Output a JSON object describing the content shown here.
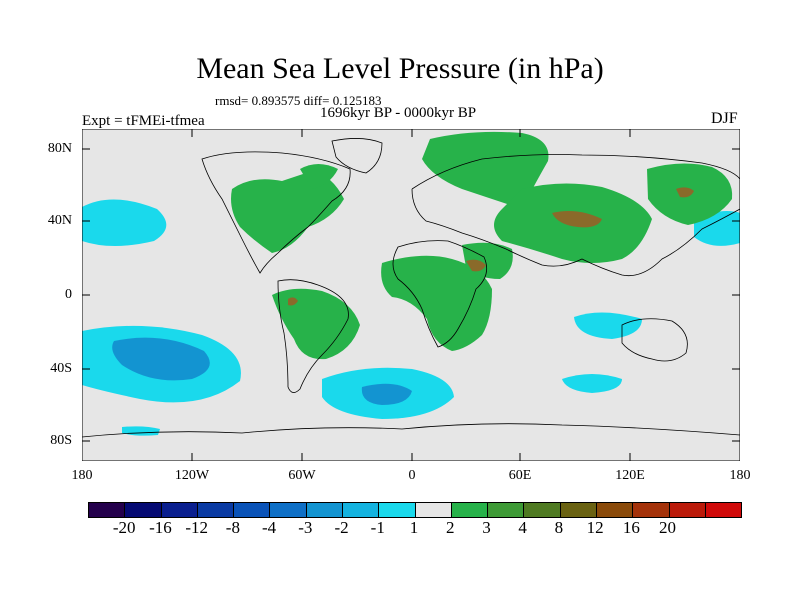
{
  "title": "Mean Sea Level Pressure (in hPa)",
  "stats": "rmsd= 0.893575 diff= 0.125183",
  "period": "1696kyr BP - 0000kyr BP",
  "experiment": "Expt = tFMEi-tfmea",
  "season": "DJF",
  "map": {
    "lat_ticks": [
      "80N",
      "40N",
      "0",
      "40S",
      "80S"
    ],
    "lon_ticks": [
      "180",
      "120W",
      "60W",
      "0",
      "60E",
      "120E",
      "180"
    ],
    "background_color": "#e6e6e6"
  },
  "colorbar": {
    "colors": [
      "#24004c",
      "#050a73",
      "#0a1f8f",
      "#0a3aa3",
      "#0a53b8",
      "#0f70c7",
      "#1394d1",
      "#14b3e0",
      "#1ad9ec",
      "#e6e6e6",
      "#27b24a",
      "#3e9a36",
      "#4f7a22",
      "#6a6212",
      "#8a4a0a",
      "#a4320a",
      "#bb1a0a",
      "#d00a0a"
    ],
    "labels": [
      "-20",
      "-16",
      "-12",
      "-8",
      "-4",
      "-3",
      "-2",
      "-1",
      "1",
      "2",
      "3",
      "4",
      "8",
      "12",
      "16",
      "20"
    ]
  },
  "chart_data": {
    "type": "map-contour",
    "variable": "Mean Sea Level Pressure difference",
    "units": "hPa",
    "levels": [
      -20,
      -16,
      -12,
      -8,
      -4,
      -3,
      -2,
      -1,
      1,
      2,
      3,
      4,
      8,
      12,
      16,
      20
    ],
    "regions": [
      {
        "name": "North Pacific (west of N. America)",
        "sign": "negative",
        "min_level": -1,
        "lat": [
          25,
          45
        ],
        "lon": [
          -180,
          -140
        ]
      },
      {
        "name": "South Pacific",
        "sign": "negative",
        "min_level": -2,
        "lat": [
          -60,
          -20
        ],
        "lon": [
          -180,
          -110
        ]
      },
      {
        "name": "South Atlantic",
        "sign": "negative",
        "min_level": -2,
        "lat": [
          -65,
          -40
        ],
        "lon": [
          -40,
          30
        ]
      },
      {
        "name": "Indian Ocean off Australia",
        "sign": "negative",
        "min_level": -1,
        "lat": [
          -25,
          -10
        ],
        "lon": [
          70,
          110
        ]
      },
      {
        "name": "Tibetan Plateau",
        "sign": "negative",
        "min_level": -2,
        "lat": [
          25,
          35
        ],
        "lon": [
          78,
          100
        ]
      },
      {
        "name": "North-east Pacific near Japan",
        "sign": "negative",
        "min_level": -1,
        "lat": [
          30,
          45
        ],
        "lon": [
          155,
          180
        ]
      },
      {
        "name": "North America",
        "sign": "positive",
        "max_level": 2,
        "lat": [
          20,
          65
        ],
        "lon": [
          -130,
          -60
        ]
      },
      {
        "name": "South America",
        "sign": "positive",
        "max_level": 3,
        "lat": [
          -40,
          10
        ],
        "lon": [
          -80,
          -35
        ]
      },
      {
        "name": "Africa",
        "sign": "positive",
        "max_level": 3,
        "lat": [
          -35,
          35
        ],
        "lon": [
          -20,
          55
        ]
      },
      {
        "name": "Eurasia",
        "sign": "positive",
        "max_level": 4,
        "lat": [
          30,
          80
        ],
        "lon": [
          25,
          120
        ]
      },
      {
        "name": "Central Asia maximum",
        "sign": "positive",
        "max_level": 4,
        "lat": [
          35,
          45
        ],
        "lon": [
          60,
          100
        ]
      },
      {
        "name": "Siberia / Far East",
        "sign": "positive",
        "max_level": 4,
        "lat": [
          40,
          70
        ],
        "lon": [
          110,
          180
        ]
      },
      {
        "name": "Arctic / Greenland",
        "sign": "positive",
        "max_level": 2,
        "lat": [
          60,
          85
        ],
        "lon": [
          -60,
          40
        ]
      }
    ]
  }
}
